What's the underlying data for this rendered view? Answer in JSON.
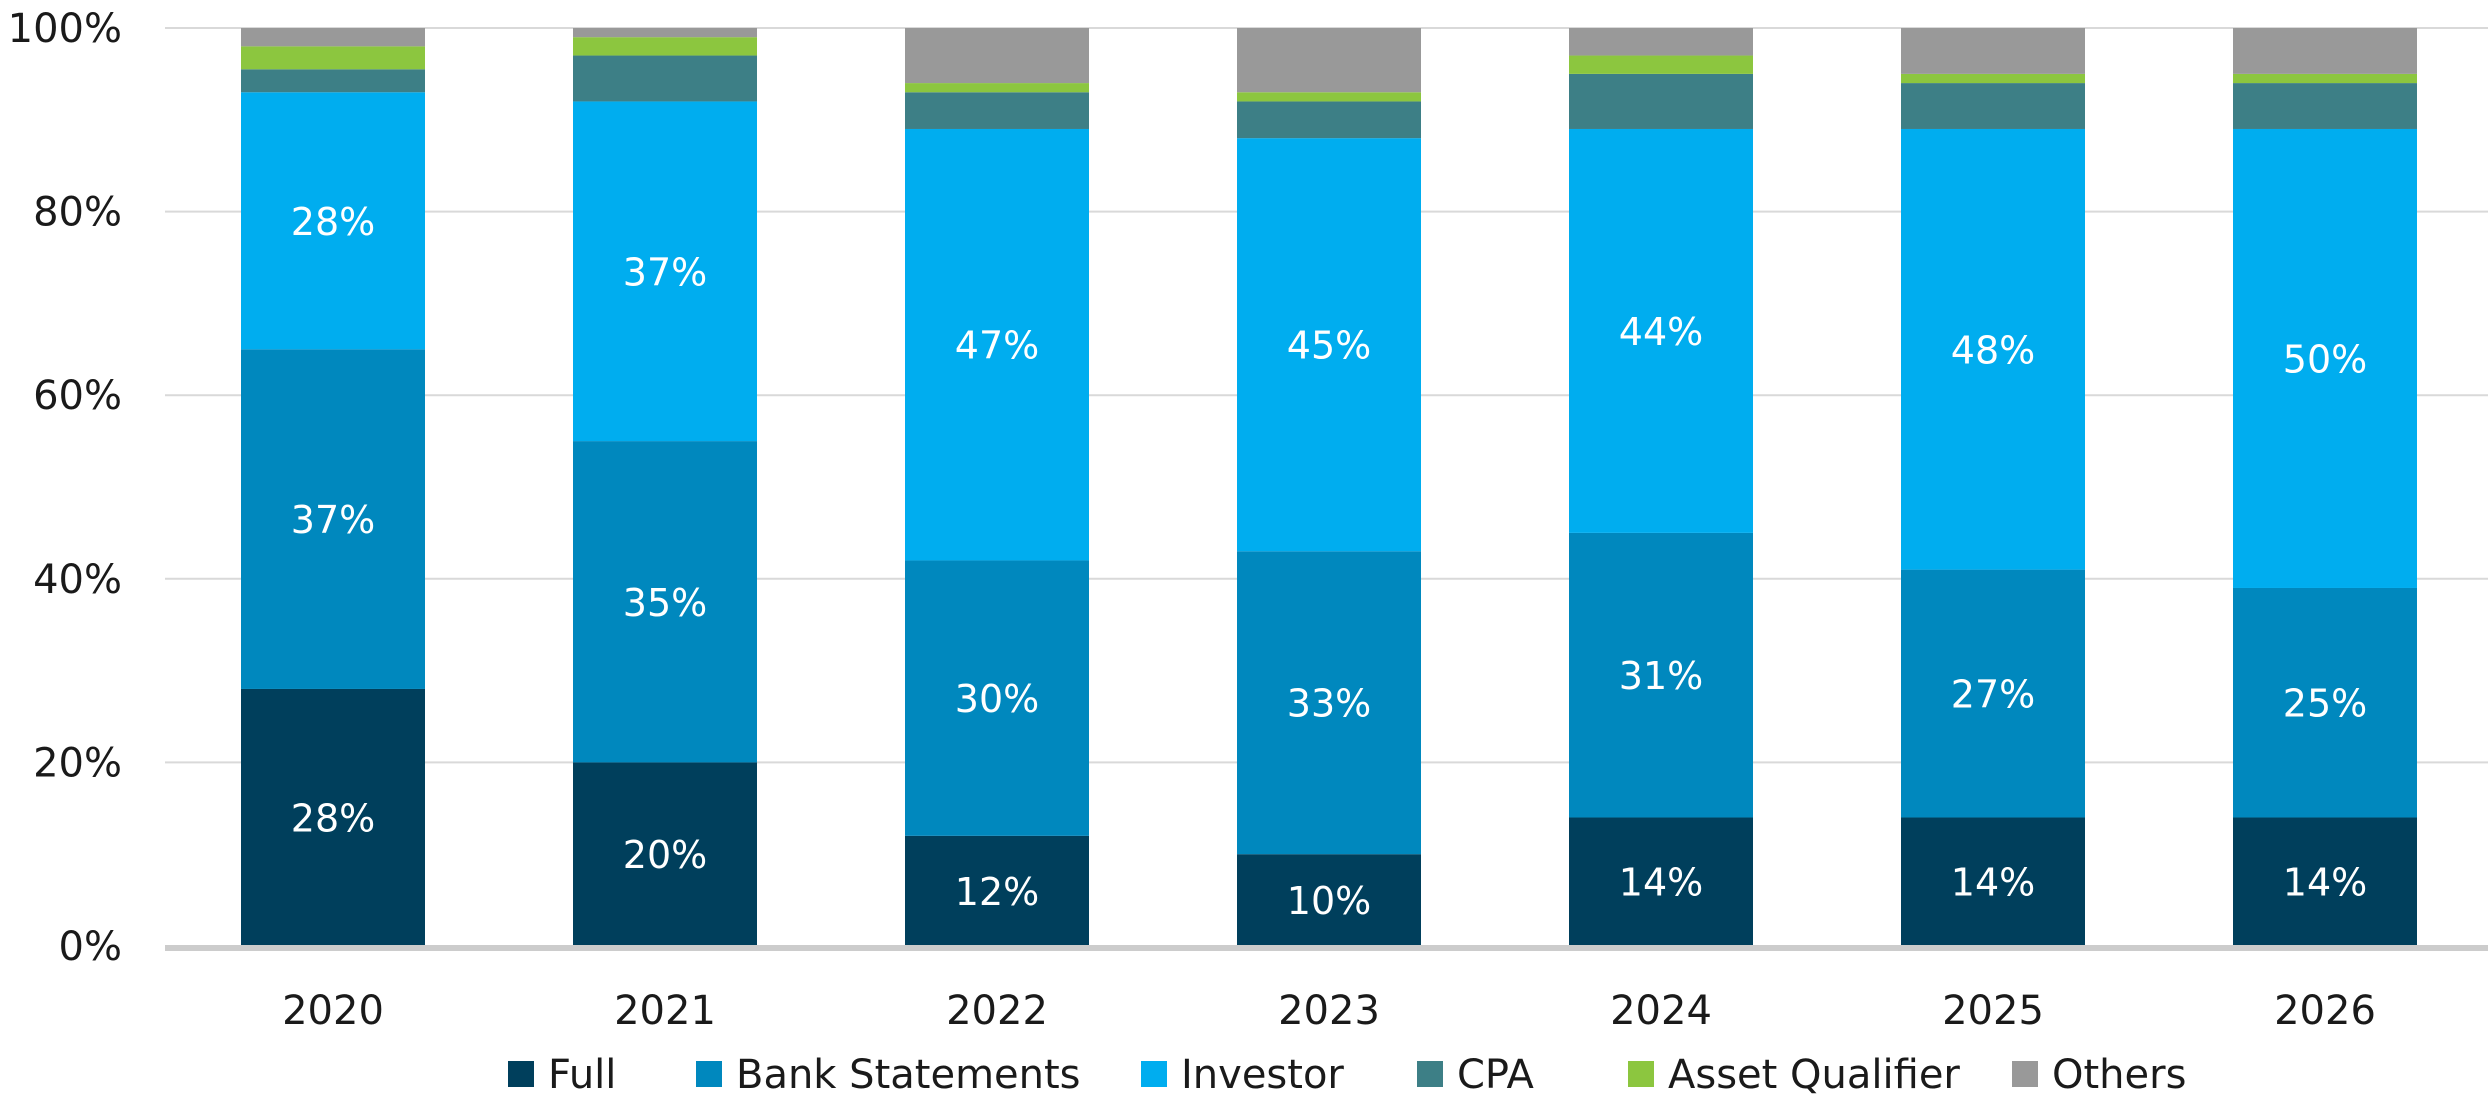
{
  "chart_data": {
    "type": "bar",
    "stacked": true,
    "title": "",
    "xlabel": "",
    "ylabel": "",
    "ylim": [
      0,
      100
    ],
    "y_ticks": [
      "0%",
      "20%",
      "40%",
      "60%",
      "80%",
      "100%"
    ],
    "grid": true,
    "legend_position": "bottom",
    "categories": [
      "2020",
      "2021",
      "2022",
      "2023",
      "2024",
      "2025",
      "2026"
    ],
    "series": [
      {
        "name": "Full",
        "color": "#003f5c",
        "values": [
          28,
          20,
          12,
          10,
          14,
          14,
          14
        ],
        "labels": [
          "28%",
          "20%",
          "12%",
          "10%",
          "14%",
          "14%",
          "14%"
        ]
      },
      {
        "name": "Bank Statements",
        "color": "#0088be",
        "values": [
          37,
          35,
          30,
          33,
          31,
          27,
          25
        ],
        "labels": [
          "37%",
          "35%",
          "30%",
          "33%",
          "31%",
          "27%",
          "25%"
        ]
      },
      {
        "name": "Investor",
        "color": "#00adef",
        "values": [
          28,
          37,
          47,
          45,
          44,
          48,
          50
        ],
        "labels": [
          "28%",
          "37%",
          "47%",
          "45%",
          "44%",
          "48%",
          "50%"
        ]
      },
      {
        "name": "CPA",
        "color": "#3d7f86",
        "values": [
          2.5,
          5,
          4,
          4,
          6,
          5,
          5
        ],
        "labels": [
          "",
          "",
          "",
          "",
          "",
          "",
          ""
        ]
      },
      {
        "name": "Asset Qualifier",
        "color": "#8cc63f",
        "values": [
          2.5,
          2,
          1,
          1,
          2,
          1,
          1
        ],
        "labels": [
          "",
          "",
          "",
          "",
          "",
          "",
          ""
        ]
      },
      {
        "name": "Others",
        "color": "#999999",
        "values": [
          2,
          1,
          6,
          7,
          3,
          5,
          5
        ],
        "labels": [
          "",
          "",
          "",
          "",
          "",
          "",
          ""
        ]
      }
    ]
  }
}
